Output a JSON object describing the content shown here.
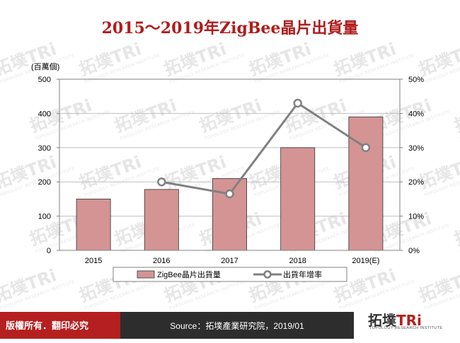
{
  "title": "2015～2019年ZigBee晶片出貨量",
  "footer": {
    "copyright": "版權所有．翻印必究",
    "source": "Source：拓墣產業研究院，2019/01",
    "logo_text": "拓墣TRi",
    "logo_sub": "TOPOLOGY RESEARCH INSTITUTE"
  },
  "watermark_text": "拓墣TRi",
  "watermark_sub": "TOPOLOGY RESEARCH INSTITUTE",
  "colors": {
    "title": "#b01c1c",
    "bar_fill": "#d49494",
    "bar_stroke": "#333333",
    "line": "#808080",
    "footer_red": "#b51f1f",
    "footer_dark": "#2d2d2d"
  },
  "chart_data": {
    "type": "bar",
    "unit_label": "(百萬個)",
    "categories": [
      "2015",
      "2016",
      "2017",
      "2018",
      "2019(E)"
    ],
    "y_ticks": [
      "0",
      "100",
      "200",
      "300",
      "400",
      "500"
    ],
    "y2_ticks": [
      "0%",
      "10%",
      "20%",
      "30%",
      "40%",
      "50%"
    ],
    "ylim": [
      0,
      500
    ],
    "y2lim": [
      0,
      50
    ],
    "series": [
      {
        "name": "ZigBee晶片出貨量",
        "type": "bar",
        "axis": "left",
        "values": [
          150,
          178,
          210,
          300,
          390
        ]
      },
      {
        "name": "出貨年增率",
        "type": "line",
        "axis": "right",
        "values": [
          null,
          20,
          16.5,
          43,
          30
        ]
      }
    ],
    "legend": "bottom"
  }
}
